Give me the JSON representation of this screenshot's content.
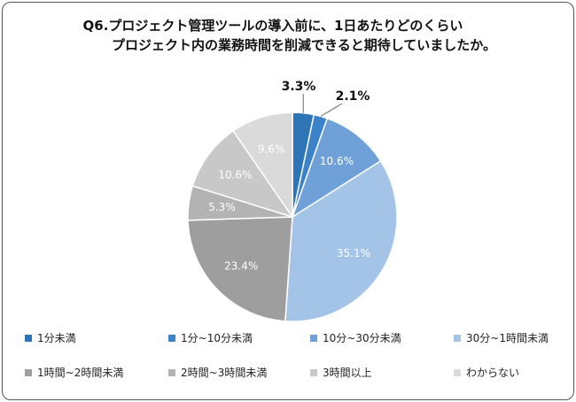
{
  "chart_data": {
    "type": "pie",
    "title_line1": "Q6.プロジェクト管理ツールの導入前に、1日あたりどのくらい",
    "title_line2": "プロジェクト内の業務時間を削減できると期待していましたか。",
    "categories": [
      "1分未満",
      "1分~10分未満",
      "10分~30分未満",
      "30分~1時間未満",
      "1時間~2時間未満",
      "2時間~3時間未満",
      "3時間以上",
      "わからない"
    ],
    "values": [
      3.3,
      2.1,
      10.6,
      35.1,
      23.4,
      5.3,
      10.6,
      9.6
    ],
    "labels": [
      "3.3%",
      "2.1%",
      "10.6%",
      "35.1%",
      "23.4%",
      "5.3%",
      "10.6%",
      "9.6%"
    ],
    "colors": [
      "#2E75B6",
      "#3B82C8",
      "#6FA1D8",
      "#A3C4E6",
      "#9E9E9E",
      "#B3B3B3",
      "#C8C8C8",
      "#DADADA"
    ],
    "start_angle": "12 o'clock",
    "direction": "clockwise",
    "legend_position": "bottom"
  }
}
